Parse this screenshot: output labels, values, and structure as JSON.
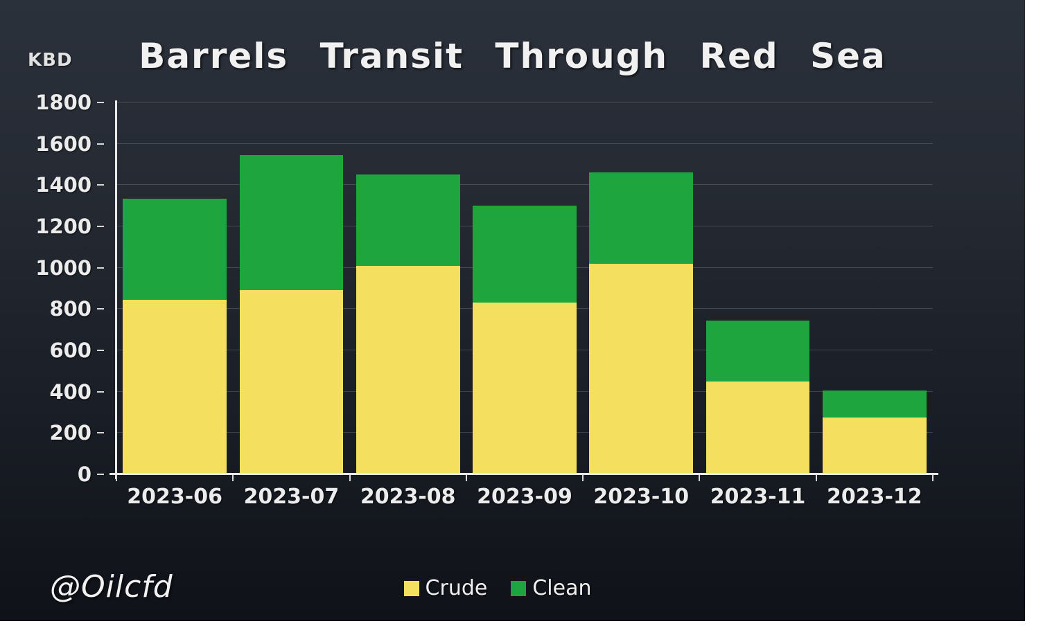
{
  "header": {
    "y_unit_label": "KBD",
    "title": "Barrels Transit Through Red Sea"
  },
  "watermark": "@Oilcfd",
  "colors": {
    "crude": "#F4DF5E",
    "clean": "#1FA53E",
    "background_top": "#2b313b",
    "background_bottom": "#0f1218",
    "axis": "#e9e9e9",
    "gridline": "rgba(255,255,255,0.17)",
    "text": "#ececec"
  },
  "legend": {
    "position": "bottom",
    "items": [
      {
        "label": "Crude",
        "color": "#F4DF5E"
      },
      {
        "label": "Clean",
        "color": "#1FA53E"
      }
    ]
  },
  "chart_data": {
    "type": "bar",
    "stacked": true,
    "title": "Barrels Transit Through Red Sea",
    "xlabel": "",
    "ylabel": "KBD",
    "ylim": [
      0,
      1800
    ],
    "ytick_step": 200,
    "grid": true,
    "legend_position": "bottom",
    "categories": [
      "2023-06",
      "2023-07",
      "2023-08",
      "2023-09",
      "2023-10",
      "2023-11",
      "2023-12"
    ],
    "series": [
      {
        "name": "Crude",
        "color": "#F4DF5E",
        "values": [
          845,
          890,
          1010,
          830,
          1020,
          450,
          275
        ]
      },
      {
        "name": "Clean",
        "color": "#1FA53E",
        "values": [
          490,
          655,
          440,
          470,
          440,
          295,
          130
        ]
      }
    ],
    "totals": [
      1335,
      1545,
      1450,
      1300,
      1460,
      745,
      405
    ]
  }
}
